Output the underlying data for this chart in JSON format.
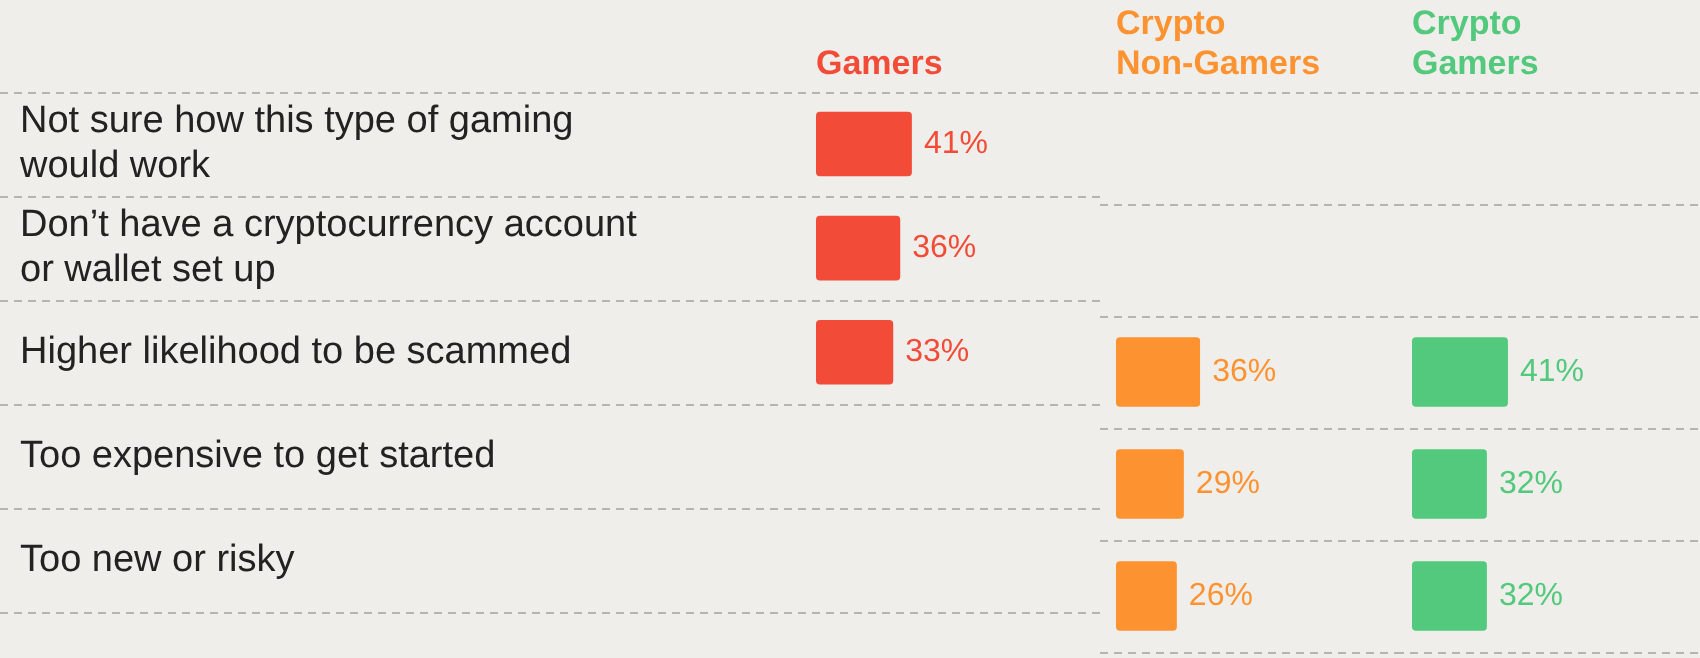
{
  "chart_data": [
    {
      "type": "bar",
      "orientation": "horizontal",
      "categories": [
        "Not sure how this type of gaming would work",
        "Don’t have a cryptocurrency account or wallet set up",
        "Higher likelihood to be scammed",
        "Too expensive to get started",
        "Too new or risky"
      ],
      "series": [
        {
          "name": "Gamers",
          "color": "#f24c38",
          "values": [
            41,
            36,
            33,
            null,
            null
          ],
          "value_labels": [
            "41%",
            "36%",
            "33%",
            null,
            null
          ]
        }
      ],
      "grid": "y",
      "tick_labels": "y",
      "legend": false
    },
    {
      "type": "bar",
      "orientation": "horizontal",
      "categories": [
        null,
        null,
        null,
        null,
        null
      ],
      "series": [
        {
          "name": "Crypto Non-Gamers",
          "color": "#fd9330",
          "values": [
            null,
            null,
            36,
            29,
            26
          ],
          "value_labels": [
            null,
            null,
            "36%",
            "29%",
            "26%"
          ]
        }
      ],
      "grid": "y",
      "tick_labels": false,
      "legend": false
    },
    {
      "type": "bar",
      "orientation": "horizontal",
      "categories": [
        null,
        null,
        null,
        null,
        null
      ],
      "series": [
        {
          "name": "Crypto Gamers",
          "color": "#52c97c",
          "values": [
            null,
            null,
            41,
            32,
            32
          ],
          "value_labels": [
            null,
            null,
            "41%",
            "32%",
            "32%"
          ]
        }
      ],
      "grid": "y",
      "tick_labels": false,
      "legend": false
    }
  ]
}
